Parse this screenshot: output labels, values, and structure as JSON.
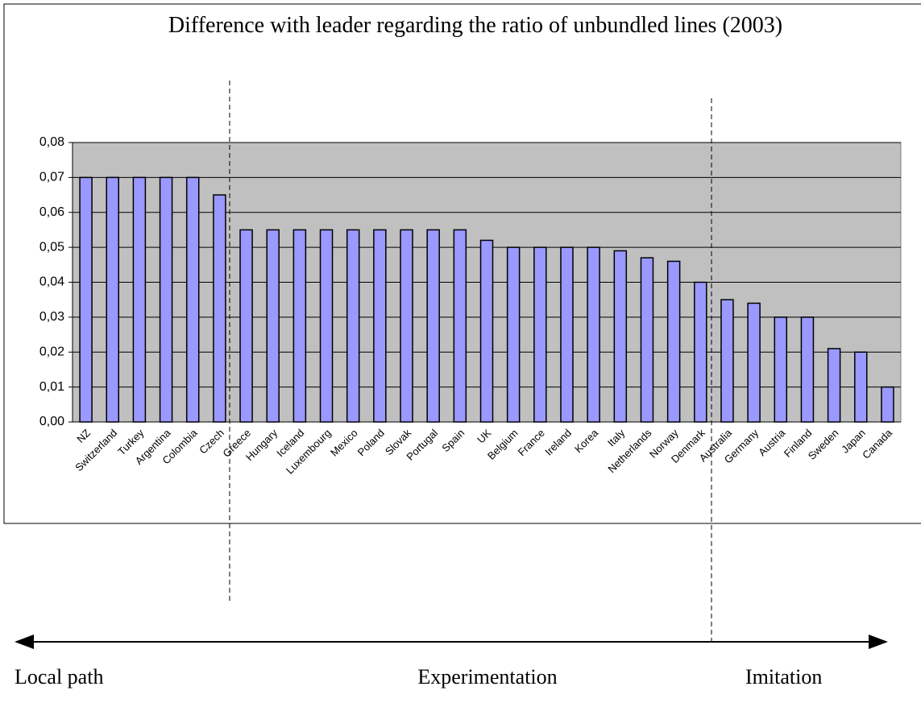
{
  "chart_data": {
    "type": "bar",
    "title": "Difference with leader regarding the ratio of unbundled lines (2003)",
    "categories": [
      "NZ",
      "Switzerland",
      "Turkey",
      "Argentina",
      "Colombia",
      "Czech",
      "Greece",
      "Hungary",
      "Iceland",
      "Luxembourg",
      "Mexico",
      "Poland",
      "Slovak",
      "Portugal",
      "Spain",
      "UK",
      "Belgium",
      "France",
      "Ireland",
      "Korea",
      "Italy",
      "Netherlands",
      "Norway",
      "Denmark",
      "Australia",
      "Germany",
      "Austria",
      "Finland",
      "Sweden",
      "Japan",
      "Canada"
    ],
    "values": [
      0.07,
      0.07,
      0.07,
      0.07,
      0.07,
      0.065,
      0.055,
      0.055,
      0.055,
      0.055,
      0.055,
      0.055,
      0.055,
      0.055,
      0.055,
      0.052,
      0.05,
      0.05,
      0.05,
      0.05,
      0.049,
      0.047,
      0.046,
      0.04,
      0.035,
      0.034,
      0.03,
      0.03,
      0.021,
      0.02,
      0.01
    ],
    "color": "#9999ff",
    "ylim": [
      0,
      0.08
    ],
    "yticks": [
      {
        "value": 0,
        "label": "0,00"
      },
      {
        "value": 0.01,
        "label": "0,01"
      },
      {
        "value": 0.02,
        "label": "0,02"
      },
      {
        "value": 0.03,
        "label": "0,03"
      },
      {
        "value": 0.04,
        "label": "0,04"
      },
      {
        "value": 0.05,
        "label": "0,05"
      },
      {
        "value": 0.06,
        "label": "0,06"
      },
      {
        "value": 0.07,
        "label": "0,07"
      },
      {
        "value": 0.08,
        "label": "0,08"
      }
    ],
    "grid": true,
    "annotations": [
      "Local path",
      "Experimentation",
      "Imitation"
    ]
  }
}
